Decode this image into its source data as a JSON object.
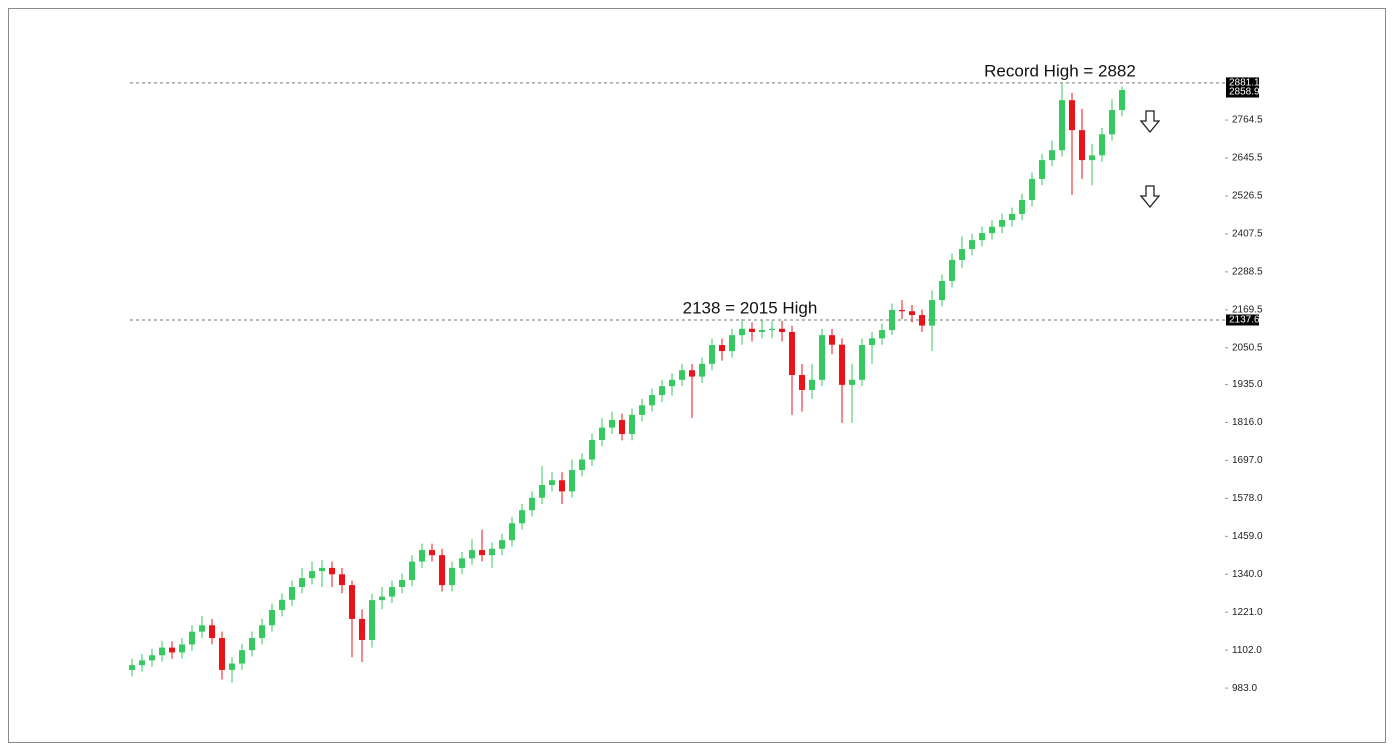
{
  "chart_data": {
    "type": "candlestick",
    "up_color": "#36c95f",
    "down_color": "#e8141a",
    "ylim": [
      883,
      2953
    ],
    "yticks": [
      {
        "value": 983,
        "label": "983.0"
      },
      {
        "value": 1102,
        "label": "1102.0"
      },
      {
        "value": 1221,
        "label": "1221.0"
      },
      {
        "value": 1340,
        "label": "1340.0"
      },
      {
        "value": 1459,
        "label": "1459.0"
      },
      {
        "value": 1578,
        "label": "1578.0"
      },
      {
        "value": 1697,
        "label": "1697.0"
      },
      {
        "value": 1816,
        "label": "1816.0"
      },
      {
        "value": 1935,
        "label": "1935.0"
      },
      2050.5,
      2169.5,
      2288.5,
      2407.5,
      2526.5,
      2645.5,
      2764.5
    ],
    "price_tags": [
      2881.1,
      2858.9,
      2137.6
    ],
    "annotations": [
      "Record High = 2882",
      "2138 = 2015 High"
    ],
    "open": [
      1040,
      1055,
      1070,
      1086,
      1110,
      1095,
      1120,
      1160,
      1180,
      1140,
      1040,
      1060,
      1102,
      1140,
      1180,
      1228,
      1260,
      1300,
      1328,
      1350,
      1360,
      1340,
      1306,
      1200,
      1134,
      1259,
      1270,
      1300,
      1322,
      1380,
      1416,
      1400,
      1306,
      1360,
      1390,
      1416,
      1400,
      1420,
      1447,
      1500,
      1541,
      1580,
      1620,
      1635,
      1600,
      1667,
      1700,
      1761,
      1800,
      1824,
      1780,
      1840,
      1870,
      1902,
      1930,
      1950,
      1980,
      1960,
      2000,
      2059,
      2040,
      2090,
      2110,
      2100,
      2106,
      2110,
      2100,
      1965,
      1918,
      1950,
      2090,
      2060,
      1934,
      1950,
      2059,
      2080,
      2106,
      2169,
      2165,
      2153,
      2120,
      2200,
      2260,
      2326,
      2360,
      2388,
      2410,
      2430,
      2451,
      2470,
      2514,
      2580,
      2639,
      2670,
      2827,
      2733,
      2639,
      2654,
      2720,
      2796
    ],
    "high": [
      1075,
      1090,
      1106,
      1130,
      1130,
      1140,
      1180,
      1210,
      1200,
      1160,
      1080,
      1122,
      1160,
      1200,
      1248,
      1280,
      1320,
      1360,
      1380,
      1385,
      1380,
      1360,
      1320,
      1230,
      1279,
      1300,
      1320,
      1342,
      1400,
      1436,
      1436,
      1420,
      1380,
      1410,
      1450,
      1480,
      1440,
      1467,
      1520,
      1561,
      1600,
      1680,
      1660,
      1660,
      1700,
      1720,
      1781,
      1830,
      1850,
      1844,
      1860,
      1890,
      1922,
      1950,
      1970,
      2000,
      2000,
      2020,
      2079,
      2079,
      2110,
      2140,
      2130,
      2140,
      2135,
      2135,
      2120,
      2000,
      2000,
      2110,
      2110,
      2080,
      2000,
      2079,
      2100,
      2126,
      2189,
      2200,
      2185,
      2170,
      2230,
      2280,
      2346,
      2400,
      2408,
      2430,
      2450,
      2471,
      2490,
      2534,
      2600,
      2659,
      2700,
      2882,
      2850,
      2800,
      2690,
      2740,
      2830,
      2870
    ],
    "low": [
      1020,
      1035,
      1050,
      1066,
      1075,
      1075,
      1100,
      1140,
      1120,
      1010,
      1000,
      1040,
      1082,
      1120,
      1160,
      1208,
      1240,
      1280,
      1308,
      1300,
      1300,
      1280,
      1080,
      1065,
      1110,
      1230,
      1250,
      1280,
      1302,
      1360,
      1380,
      1286,
      1286,
      1340,
      1370,
      1380,
      1360,
      1400,
      1427,
      1480,
      1521,
      1560,
      1600,
      1560,
      1580,
      1647,
      1680,
      1741,
      1780,
      1760,
      1760,
      1820,
      1850,
      1880,
      1900,
      1930,
      1830,
      1940,
      1980,
      2010,
      2020,
      2060,
      2070,
      2080,
      2080,
      2070,
      1840,
      1850,
      1890,
      1930,
      2030,
      1815,
      1815,
      1930,
      2000,
      2060,
      2090,
      2140,
      2130,
      2100,
      2040,
      2180,
      2240,
      2300,
      2340,
      2368,
      2390,
      2410,
      2430,
      2450,
      2494,
      2560,
      2620,
      2650,
      2530,
      2580,
      2560,
      2634,
      2700,
      2776
    ],
    "close": [
      1055,
      1070,
      1086,
      1110,
      1095,
      1120,
      1160,
      1180,
      1140,
      1040,
      1060,
      1102,
      1140,
      1180,
      1228,
      1260,
      1300,
      1328,
      1350,
      1360,
      1340,
      1306,
      1200,
      1134,
      1259,
      1270,
      1300,
      1322,
      1380,
      1416,
      1400,
      1306,
      1360,
      1390,
      1416,
      1400,
      1420,
      1447,
      1500,
      1541,
      1580,
      1620,
      1635,
      1600,
      1667,
      1700,
      1761,
      1800,
      1824,
      1780,
      1840,
      1870,
      1902,
      1930,
      1950,
      1980,
      1960,
      2000,
      2059,
      2040,
      2090,
      2110,
      2100,
      2106,
      2110,
      2100,
      1965,
      1918,
      1950,
      2090,
      2060,
      1934,
      1950,
      2059,
      2080,
      2106,
      2169,
      2165,
      2153,
      2120,
      2200,
      2260,
      2326,
      2360,
      2388,
      2410,
      2430,
      2451,
      2470,
      2514,
      2580,
      2639,
      2670,
      2827,
      2733,
      2639,
      2654,
      2720,
      2796,
      2859
    ]
  }
}
